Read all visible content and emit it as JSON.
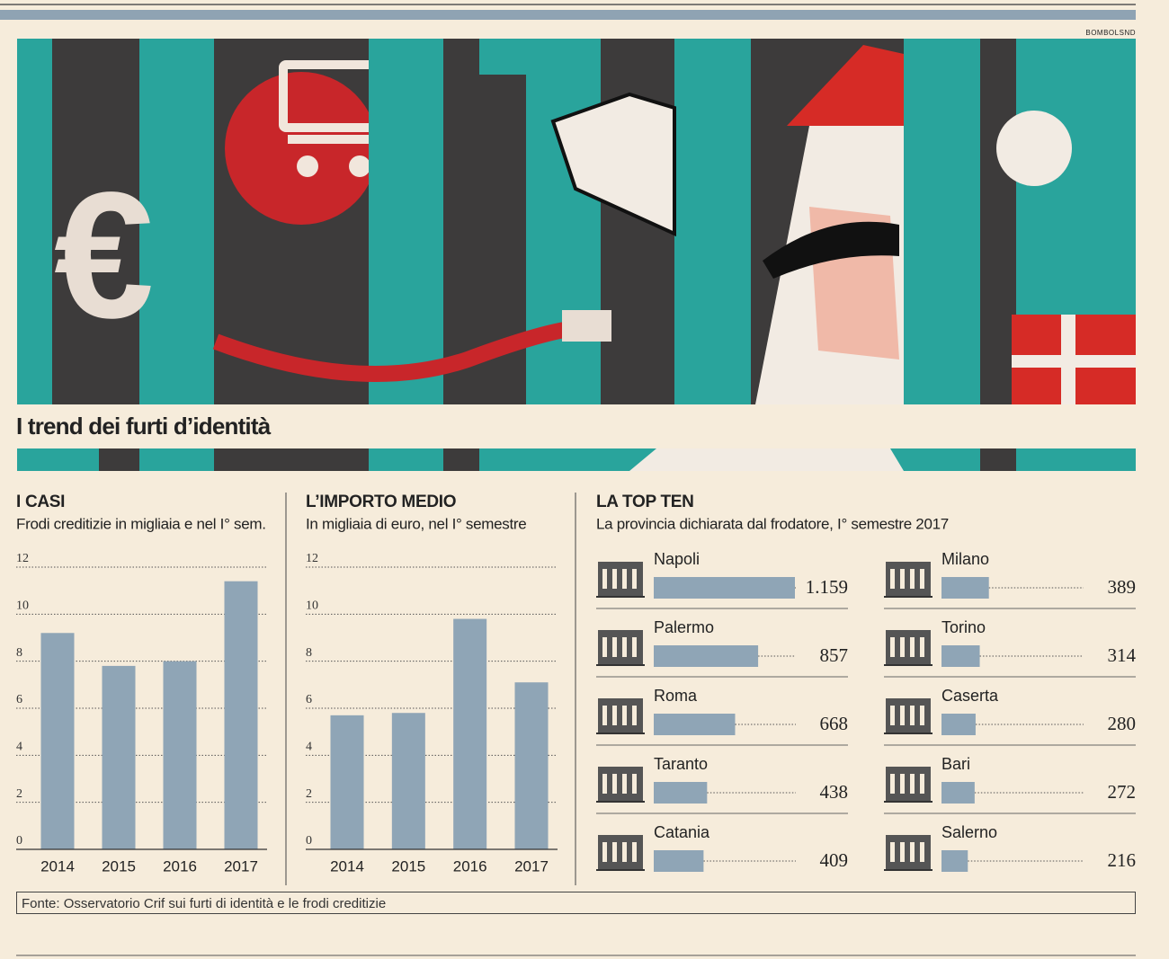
{
  "title": "I trend dei furti d’identità",
  "credit": "BOMBOLSND",
  "source": "Fonte: Osservatorio Crif sui furti di identità e le frodi creditizie",
  "chart_data": [
    {
      "type": "bar",
      "title": "I CASI",
      "subtitle": "Frodi creditizie in migliaia e nel I° sem.",
      "categories": [
        "2014",
        "2015",
        "2016",
        "2017"
      ],
      "values": [
        9.2,
        7.8,
        8.0,
        11.4
      ],
      "color": "#8fa5b6",
      "ylim": [
        0,
        12
      ],
      "yticks": [
        0,
        2,
        4,
        6,
        8,
        10,
        12
      ],
      "grid": true
    },
    {
      "type": "bar",
      "title": "L’IMPORTO MEDIO",
      "subtitle": "In migliaia di euro, nel I° semestre",
      "categories": [
        "2014",
        "2015",
        "2016",
        "2017"
      ],
      "values": [
        5.7,
        5.8,
        9.8,
        7.1
      ],
      "color": "#8fa5b6",
      "ylim": [
        0,
        12
      ],
      "yticks": [
        0,
        2,
        4,
        6,
        8,
        10,
        12
      ],
      "grid": true
    },
    {
      "type": "hbar",
      "title": "LA TOP TEN",
      "subtitle": "La provincia dichiarata dal frodatore, I° semestre 2017",
      "categories": [
        "Napoli",
        "Palermo",
        "Roma",
        "Taranto",
        "Catania",
        "Milano",
        "Torino",
        "Caserta",
        "Bari",
        "Salerno"
      ],
      "values": [
        1159,
        857,
        668,
        438,
        409,
        389,
        314,
        280,
        272,
        216
      ],
      "value_labels": [
        "1.159",
        "857",
        "668",
        "438",
        "409",
        "389",
        "314",
        "280",
        "272",
        "216"
      ],
      "color": "#8fa5b6"
    }
  ]
}
